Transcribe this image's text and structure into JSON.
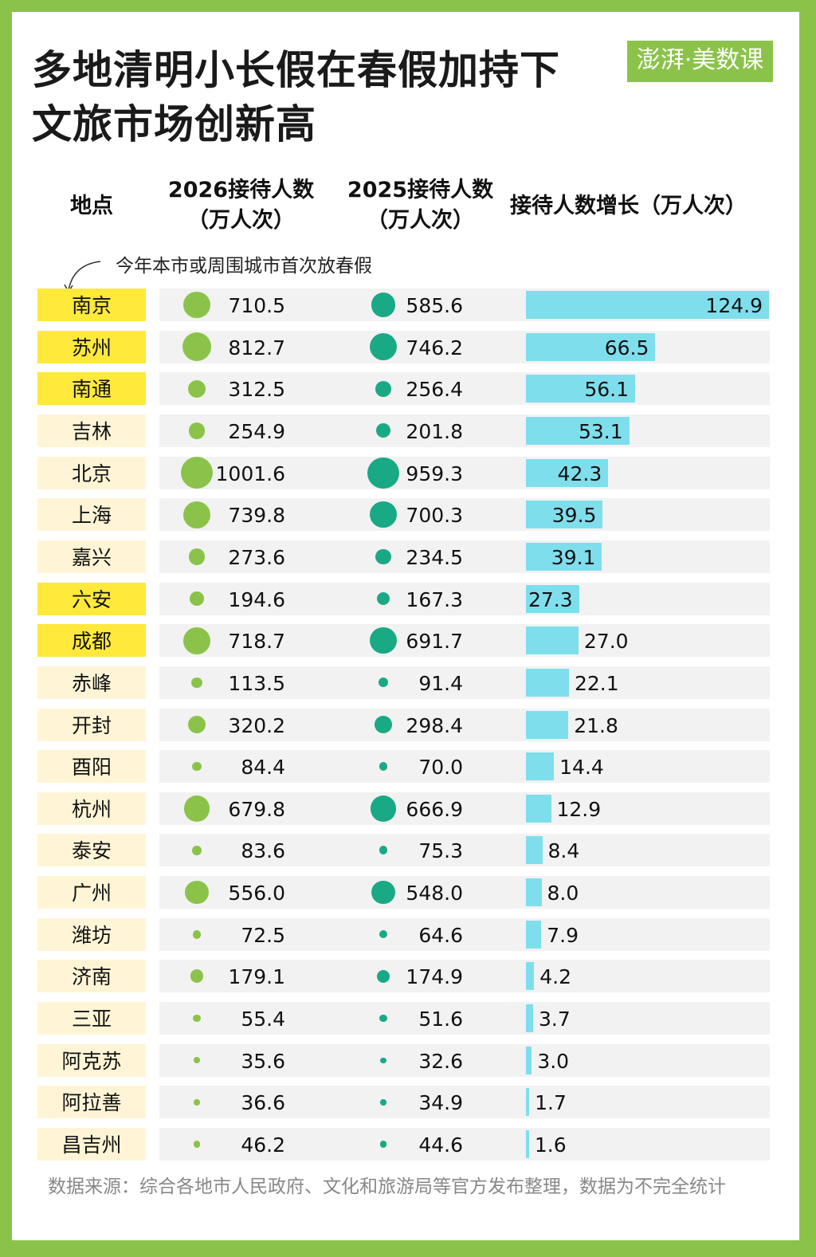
{
  "title_line1": "多地清明小长假在春假加持下",
  "title_line2": "文旅市场创新高",
  "logo": "澎湃·美数课",
  "headers": {
    "place": "地点",
    "col2026_line1": "2026接待人数",
    "col2026_line2": "（万人次）",
    "col2025_line1": "2025接待人数",
    "col2025_line2": "（万人次）",
    "growth": "接待人数增长（万人次）"
  },
  "annotation": "今年本市或周围城市首次放春假",
  "colors": {
    "border": "#8bc34a",
    "dot2026": "#8bc34a",
    "dot2025": "#1aa985",
    "bar": "#7fdeec",
    "highlight": "#ffe93b",
    "normal": "#fff5d6"
  },
  "chart_data": {
    "type": "table",
    "columns": [
      "地点",
      "2026接待人数（万人次）",
      "2025接待人数（万人次）",
      "接待人数增长（万人次）"
    ],
    "rows": [
      {
        "city": "南京",
        "v2026": "710.5",
        "v2025": "585.6",
        "growth": "124.9",
        "highlight": true
      },
      {
        "city": "苏州",
        "v2026": "812.7",
        "v2025": "746.2",
        "growth": "66.5",
        "highlight": true
      },
      {
        "city": "南通",
        "v2026": "312.5",
        "v2025": "256.4",
        "growth": "56.1",
        "highlight": true
      },
      {
        "city": "吉林",
        "v2026": "254.9",
        "v2025": "201.8",
        "growth": "53.1",
        "highlight": false
      },
      {
        "city": "北京",
        "v2026": "1001.6",
        "v2025": "959.3",
        "growth": "42.3",
        "highlight": false
      },
      {
        "city": "上海",
        "v2026": "739.8",
        "v2025": "700.3",
        "growth": "39.5",
        "highlight": false
      },
      {
        "city": "嘉兴",
        "v2026": "273.6",
        "v2025": "234.5",
        "growth": "39.1",
        "highlight": false
      },
      {
        "city": "六安",
        "v2026": "194.6",
        "v2025": "167.3",
        "growth": "27.3",
        "highlight": true
      },
      {
        "city": "成都",
        "v2026": "718.7",
        "v2025": "691.7",
        "growth": "27.0",
        "highlight": true
      },
      {
        "city": "赤峰",
        "v2026": "113.5",
        "v2025": "91.4",
        "growth": "22.1",
        "highlight": false
      },
      {
        "city": "开封",
        "v2026": "320.2",
        "v2025": "298.4",
        "growth": "21.8",
        "highlight": false
      },
      {
        "city": "酉阳",
        "v2026": "84.4",
        "v2025": "70.0",
        "growth": "14.4",
        "highlight": false
      },
      {
        "city": "杭州",
        "v2026": "679.8",
        "v2025": "666.9",
        "growth": "12.9",
        "highlight": false
      },
      {
        "city": "泰安",
        "v2026": "83.6",
        "v2025": "75.3",
        "growth": "8.4",
        "highlight": false
      },
      {
        "city": "广州",
        "v2026": "556.0",
        "v2025": "548.0",
        "growth": "8.0",
        "highlight": false
      },
      {
        "city": "潍坊",
        "v2026": "72.5",
        "v2025": "64.6",
        "growth": "7.9",
        "highlight": false
      },
      {
        "city": "济南",
        "v2026": "179.1",
        "v2025": "174.9",
        "growth": "4.2",
        "highlight": false
      },
      {
        "city": "三亚",
        "v2026": "55.4",
        "v2025": "51.6",
        "growth": "3.7",
        "highlight": false
      },
      {
        "city": "阿克苏",
        "v2026": "35.6",
        "v2025": "32.6",
        "growth": "3.0",
        "highlight": false
      },
      {
        "city": "阿拉善",
        "v2026": "36.6",
        "v2025": "34.9",
        "growth": "1.7",
        "highlight": false
      },
      {
        "city": "昌吉州",
        "v2026": "46.2",
        "v2025": "44.6",
        "growth": "1.6",
        "highlight": false
      }
    ]
  },
  "source": "数据来源：综合各地市人民政府、文化和旅游局等官方发布整理，数据为不完全统计"
}
